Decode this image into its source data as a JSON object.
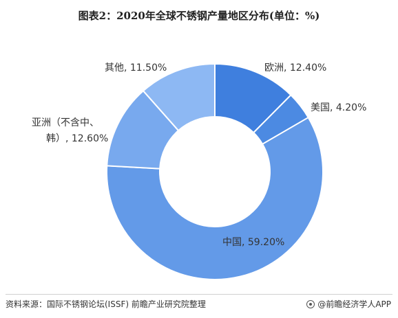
{
  "chart_data": {
    "type": "pie",
    "title": "图表2：2020年全球不锈钢产量地区分布(单位：%)",
    "donut": true,
    "slices": [
      {
        "label": "欧洲",
        "value": 12.4,
        "value_text": "12.40%",
        "color": "#3f7fde"
      },
      {
        "label": "美国",
        "value": 4.2,
        "value_text": "4.20%",
        "color": "#4c8ae2"
      },
      {
        "label": "中国",
        "value": 59.2,
        "value_text": "59.20%",
        "color": "#639ae8"
      },
      {
        "label": "亚洲（不含中、韩）",
        "value": 12.6,
        "value_text": "12.60%",
        "color": "#78a9ee"
      },
      {
        "label": "其他",
        "value": 11.5,
        "value_text": "11.50%",
        "color": "#8db8f3"
      }
    ],
    "label_texts": {
      "europe": "欧洲, 12.40%",
      "usa": "美国, 4.20%",
      "china": "中国, 59.20%",
      "asia_line1": "亚洲（不含中、",
      "asia_line2": "韩）, 12.60%",
      "other": "其他, 11.50%"
    },
    "label_color": "#333333"
  },
  "footer": {
    "source": "资料来源：国际不锈钢论坛(ISSF) 前瞻产业研究院整理",
    "brand": "@前瞻经济学人APP"
  }
}
